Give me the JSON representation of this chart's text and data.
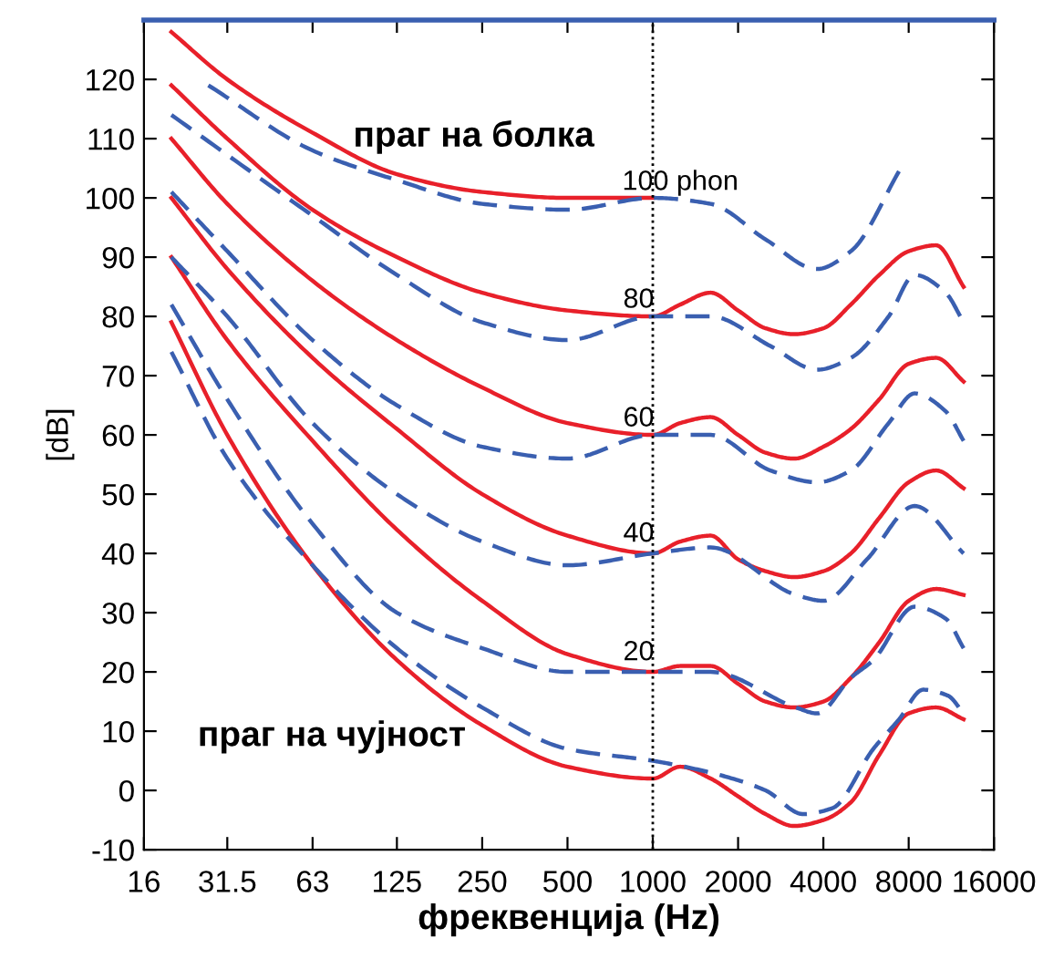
{
  "chart_data": {
    "type": "line",
    "xlabel": "фреквенција (Hz)",
    "ylabel": "[dB]",
    "log": "x",
    "xlim": [
      16,
      16000
    ],
    "ylim": [
      -10,
      130
    ],
    "xticks": [
      16,
      31.5,
      63,
      125,
      250,
      500,
      1000,
      2000,
      4000,
      8000,
      16000
    ],
    "yticks": [
      -10,
      0,
      10,
      20,
      30,
      40,
      50,
      60,
      70,
      80,
      90,
      100,
      110,
      120
    ],
    "grid": false,
    "legend": false,
    "marker": "none",
    "series": [
      {
        "color": "#e8202a",
        "line_style": "solid",
        "x": [
          20,
          31.5,
          63,
          125,
          250,
          500,
          1000
        ],
        "values": [
          128,
          120,
          111,
          104,
          101,
          100,
          100
        ]
      },
      {
        "color": "#e8202a",
        "line_style": "solid",
        "x": [
          20,
          31.5,
          63,
          125,
          250,
          500,
          1000,
          1250,
          1600,
          2000,
          2500,
          3150,
          4000,
          5000,
          6300,
          8000,
          10000,
          12500
        ],
        "values": [
          119,
          110,
          98,
          90,
          84,
          81,
          80,
          82,
          84,
          81,
          78,
          77,
          78,
          82,
          87,
          91,
          92,
          85
        ]
      },
      {
        "color": "#e8202a",
        "line_style": "solid",
        "x": [
          20,
          31.5,
          63,
          125,
          250,
          500,
          1000,
          1250,
          1600,
          2000,
          2500,
          3150,
          4000,
          5000,
          6300,
          8000,
          10000,
          12500
        ],
        "values": [
          110,
          99,
          86,
          76,
          68,
          62,
          60,
          62,
          63,
          60,
          57,
          56,
          58,
          61,
          66,
          72,
          73,
          69
        ]
      },
      {
        "color": "#e8202a",
        "line_style": "solid",
        "x": [
          20,
          31.5,
          63,
          125,
          250,
          500,
          1000,
          1250,
          1600,
          2000,
          2500,
          3150,
          4000,
          5000,
          6300,
          8000,
          10000,
          12500
        ],
        "values": [
          100,
          88,
          73,
          61,
          50,
          43,
          40,
          42,
          43,
          39,
          37,
          36,
          37,
          40,
          46,
          52,
          54,
          51
        ]
      },
      {
        "color": "#e8202a",
        "line_style": "solid",
        "x": [
          20,
          31.5,
          63,
          125,
          250,
          500,
          1000,
          1250,
          1600,
          2000,
          2500,
          3150,
          4000,
          5000,
          6300,
          8000,
          10000,
          12500
        ],
        "values": [
          90,
          76,
          59,
          44,
          32,
          23,
          20,
          21,
          21,
          18,
          15,
          14,
          15,
          19,
          25,
          32,
          34,
          33
        ]
      },
      {
        "color": "#e8202a",
        "line_style": "solid",
        "x": [
          20,
          31.5,
          63,
          125,
          250,
          500,
          1000,
          1250,
          1600,
          2000,
          2500,
          3150,
          4000,
          5000,
          6300,
          8000,
          10000,
          12500
        ],
        "values": [
          79,
          60,
          38,
          22,
          11,
          4,
          2,
          4,
          2,
          -1,
          -4,
          -6,
          -5,
          -2,
          6,
          13,
          14,
          12
        ]
      },
      {
        "color": "#3a5fb0",
        "line_style": "dashed",
        "x": [
          27,
          63,
          125,
          250,
          500,
          1000,
          1600,
          2500,
          3800,
          5000,
          7500
        ],
        "values": [
          119,
          108,
          103,
          99,
          98,
          100,
          99,
          93,
          88,
          91,
          105
        ]
      },
      {
        "color": "#3a5fb0",
        "line_style": "dashed",
        "x": [
          20,
          63,
          125,
          250,
          500,
          1000,
          1600,
          2600,
          3800,
          5000,
          6800,
          8400,
          10800,
          12500
        ],
        "values": [
          114,
          97,
          87,
          79,
          76,
          80,
          80,
          75,
          71,
          73,
          80,
          87,
          84,
          79
        ]
      },
      {
        "color": "#3a5fb0",
        "line_style": "dashed",
        "x": [
          20,
          31.5,
          63,
          125,
          250,
          500,
          1000,
          1600,
          2600,
          3800,
          5000,
          6800,
          8400,
          10800,
          12500
        ],
        "values": [
          101,
          91,
          76,
          65,
          58,
          56,
          60,
          60,
          54,
          52,
          54,
          62,
          67,
          64,
          59
        ]
      },
      {
        "color": "#3a5fb0",
        "line_style": "dashed",
        "x": [
          20,
          31.5,
          63,
          125,
          250,
          500,
          1000,
          1600,
          3200,
          4000,
          5700,
          8400,
          12500
        ],
        "values": [
          90,
          80,
          62,
          50,
          42,
          38,
          40,
          41,
          33,
          32,
          39,
          48,
          40
        ]
      },
      {
        "color": "#3a5fb0",
        "line_style": "dashed",
        "x": [
          20,
          31.5,
          63,
          125,
          250,
          500,
          1000,
          1600,
          3200,
          3800,
          5000,
          6000,
          8400,
          10800,
          12500
        ],
        "values": [
          82,
          66,
          45,
          30,
          24,
          20,
          20,
          20,
          14,
          13,
          19,
          22,
          31,
          29,
          24
        ]
      },
      {
        "color": "#3a5fb0",
        "line_style": "dashed",
        "x": [
          20,
          31.5,
          63,
          125,
          250,
          500,
          1000,
          1600,
          2500,
          3400,
          4300,
          6000,
          7400,
          9000,
          11000,
          12500
        ],
        "values": [
          74,
          56,
          38,
          24,
          14,
          7,
          5,
          3,
          0,
          -4,
          -3,
          7,
          12,
          17,
          16,
          13
        ]
      }
    ],
    "ref_lines": [
      {
        "axis": "x",
        "value": 1000,
        "color": "#000000",
        "line_style": "dotted"
      }
    ],
    "annotations": [
      "праг на болка",
      "праг на чујност",
      "100 phon",
      "80",
      "60",
      "40",
      "20"
    ]
  }
}
